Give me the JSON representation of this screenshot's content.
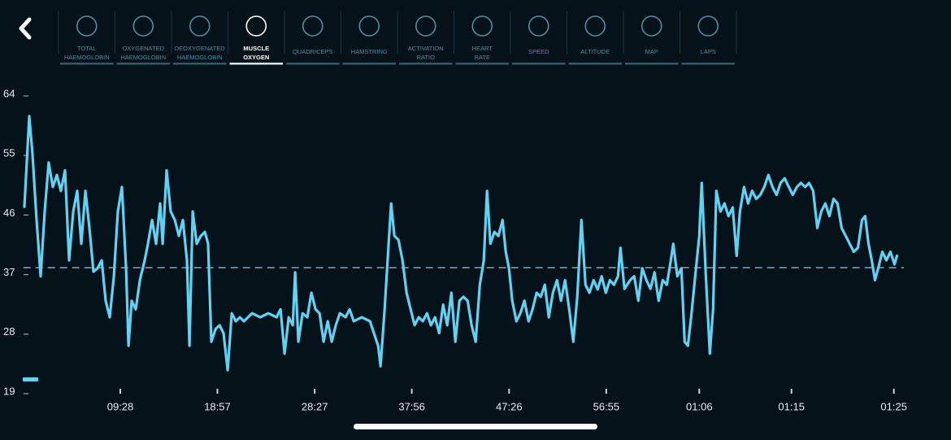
{
  "nav": {
    "tabs": [
      {
        "label": [
          "TOTAL",
          "HAEMOGLOBIN"
        ]
      },
      {
        "label": [
          "OXYGENATED",
          "HAEMOGLOBIN"
        ]
      },
      {
        "label": [
          "DEOXYGENATED",
          "HAEMOGLOBIN"
        ]
      },
      {
        "label": [
          "MUSCLE",
          "OXYGEN"
        ],
        "active": true
      },
      {
        "label": [
          "QUADRICEPS"
        ]
      },
      {
        "label": [
          "HAMSTRING"
        ]
      },
      {
        "label": [
          "ACTIVATION",
          "RATIO"
        ]
      },
      {
        "label": [
          "HEART",
          "RATE"
        ]
      },
      {
        "label": [
          "SPEED"
        ]
      },
      {
        "label": [
          "ALTITUDE"
        ]
      },
      {
        "label": [
          "MAP"
        ]
      },
      {
        "label": [
          "LAPS"
        ]
      }
    ]
  },
  "chart_data": {
    "type": "line",
    "color": "#5fd3f3",
    "x": [
      0.1,
      0.58,
      0.9,
      1.29,
      1.69,
      2.09,
      2.48,
      2.88,
      3.28,
      3.67,
      4.07,
      4.47,
      4.87,
      5.26,
      5.66,
      6.06,
      6.45,
      6.85,
      7.25,
      7.65,
      8.04,
      8.44,
      8.84,
      9.23,
      9.63,
      10.03,
      10.27,
      10.58,
      10.98,
      11.38,
      11.85,
      12.17,
      12.57,
      12.96,
      13.36,
      13.6,
      13.99,
      14.39,
      14.79,
      15.19,
      15.58,
      15.98,
      16.22,
      16.54,
      16.93,
      17.33,
      17.73,
      18.04,
      18.36,
      18.76,
      19.16,
      19.55,
      19.95,
      20.35,
      20.75,
      21.14,
      21.54,
      22.33,
      23.13,
      23.92,
      24.72,
      25.11,
      25.51,
      25.91,
      26.31,
      26.54,
      26.86,
      27.26,
      27.73,
      28.13,
      28.53,
      28.92,
      29.32,
      29.72,
      30.11,
      30.51,
      30.91,
      31.47,
      31.86,
      32.26,
      33.05,
      33.85,
      34.64,
      34.88,
      35.28,
      35.67,
      35.91,
      36.23,
      36.63,
      37.02,
      37.42,
      37.82,
      38.21,
      38.61,
      39.01,
      39.41,
      39.8,
      40.2,
      40.6,
      40.99,
      41.39,
      41.79,
      42.18,
      42.58,
      42.98,
      43.38,
      43.77,
      44.17,
      44.57,
      44.96,
      45.28,
      45.6,
      45.99,
      46.39,
      46.79,
      47.1,
      47.42,
      47.74,
      48.14,
      48.53,
      48.93,
      49.33,
      49.72,
      50.12,
      50.52,
      50.92,
      51.31,
      51.71,
      52.11,
      52.5,
      52.9,
      53.3,
      53.7,
      54.09,
      54.49,
      54.89,
      55.28,
      55.68,
      56.08,
      56.47,
      56.87,
      57.27,
      57.67,
      58.06,
      58.3,
      58.7,
      59.25,
      59.65,
      60.05,
      60.44,
      60.84,
      61.24,
      61.63,
      62.03,
      62.43,
      62.83,
      63.22,
      63.46,
      63.86,
      64.25,
      64.57,
      64.89,
      65.21,
      65.6,
      66.0,
      66.24,
      66.64,
      67.03,
      67.35,
      67.67,
      68.07,
      68.46,
      68.86,
      69.26,
      69.65,
      69.97,
      70.37,
      70.77,
      71.16,
      71.56,
      71.96,
      72.35,
      72.75,
      73.15,
      73.55,
      73.94,
      74.34,
      74.74,
      75.13,
      75.53,
      75.93,
      76.33,
      76.72,
      77.12,
      77.52,
      77.91,
      78.31,
      78.71,
      79.11,
      79.5,
      79.9,
      80.3,
      80.69,
      81.09,
      81.49,
      81.89,
      82.2,
      82.52,
      82.84,
      83.16,
      83.47,
      83.87,
      84.27,
      84.67,
      85.06,
      85.3
    ],
    "values": [
      47,
      60.7,
      54.9,
      45,
      36.5,
      46.3,
      53.7,
      50,
      51.8,
      49.4,
      52.5,
      38.9,
      46.3,
      49.4,
      41.4,
      49.4,
      43.8,
      37.2,
      37.7,
      38.9,
      32.8,
      30.3,
      36.5,
      46.3,
      50,
      37.7,
      26,
      32.8,
      31.5,
      35.9,
      38.9,
      41.4,
      45,
      41.4,
      47.5,
      41.4,
      52.5,
      46.3,
      45,
      42.6,
      45,
      38.9,
      26,
      46.3,
      41.4,
      42.6,
      43.2,
      41.4,
      26.6,
      28.5,
      29.1,
      27.9,
      22.3,
      30.9,
      29.7,
      30.3,
      29.7,
      30.9,
      30.3,
      30.9,
      30.3,
      31.5,
      24.8,
      30.3,
      29.1,
      37.1,
      26.6,
      30.9,
      30.3,
      34,
      31.5,
      30.9,
      26.6,
      29.7,
      26.6,
      29.1,
      30.9,
      30.3,
      31.5,
      29.7,
      30.3,
      29.7,
      26,
      22.9,
      31.5,
      41.4,
      47.5,
      42.6,
      42,
      38.9,
      34,
      31.5,
      29.1,
      30.3,
      29.7,
      30.9,
      29.1,
      30.3,
      27.9,
      32.2,
      29.1,
      34,
      26.6,
      32.8,
      33.4,
      32.8,
      29.1,
      26.6,
      35.2,
      38.9,
      49.4,
      41.4,
      43.2,
      42.6,
      45,
      40.2,
      37.7,
      32.8,
      29.7,
      30.9,
      32.8,
      29.7,
      31.5,
      34,
      33.4,
      35.2,
      30.3,
      34,
      35.9,
      32.8,
      35.9,
      31.5,
      26.6,
      33.4,
      45,
      35.2,
      34,
      35.9,
      34.5,
      36.5,
      34,
      35.9,
      35.2,
      36.5,
      40.8,
      34.6,
      35.9,
      36.5,
      32.8,
      37.7,
      35.9,
      34.6,
      37.1,
      32.8,
      35.9,
      35.2,
      38.9,
      41.4,
      36.5,
      37.7,
      26.6,
      26,
      30.3,
      36.5,
      42.6,
      50.6,
      36.5,
      24.8,
      31.5,
      49.4,
      46.3,
      47.5,
      45.6,
      46.9,
      39.6,
      46.3,
      50,
      47.5,
      49.4,
      48.2,
      48.8,
      50,
      51.8,
      50,
      48.8,
      50.6,
      51.3,
      50,
      48.8,
      50,
      50.6,
      50,
      50.6,
      49.4,
      43.8,
      46.3,
      47.5,
      45.6,
      48.2,
      47.5,
      43.8,
      42.6,
      41.4,
      40.2,
      40.8,
      45,
      45.6,
      41.4,
      38.9,
      35.9,
      37.7,
      40.2,
      38.9,
      40.2,
      38.3,
      39.6
    ],
    "xlim": [
      0,
      86
    ],
    "xticks": [
      {
        "value": 9.47,
        "label": "09:28"
      },
      {
        "value": 18.95,
        "label": "18:57"
      },
      {
        "value": 28.45,
        "label": "28:27"
      },
      {
        "value": 37.93,
        "label": "37:56"
      },
      {
        "value": 47.43,
        "label": "47:26"
      },
      {
        "value": 56.92,
        "label": "56:55"
      },
      {
        "value": 66,
        "label": "01:06"
      },
      {
        "value": 75,
        "label": "01:15"
      },
      {
        "value": 85,
        "label": "01:25"
      }
    ],
    "ylim": [
      19,
      64
    ],
    "yticks": [
      19,
      28,
      37,
      46,
      55,
      64
    ],
    "reference_line": 37.8
  }
}
